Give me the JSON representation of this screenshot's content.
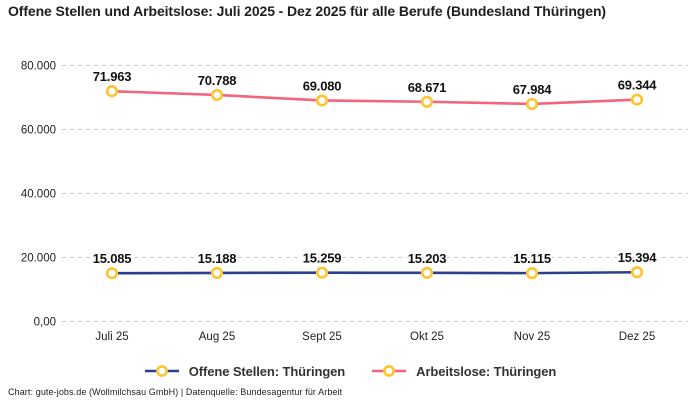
{
  "title": "Offene Stellen und Arbeitslose: Juli 2025 - Dez 2025 für alle Berufe (Bundesland Thüringen)",
  "footer": "Chart: gute-jobs.de (Wollmilchsau GmbH) | Datenquelle: Bundesagentur für Arbeit",
  "colors": {
    "open_positions_line": "#2B3E8F",
    "unemployed_line": "#F4647C",
    "marker_ring": "#FFC331",
    "marker_fill": "#FFFFFF",
    "gridline": "#CCCCCC",
    "data_label_text": "#111111",
    "axis_tick_text": "#222222",
    "legend_text": "#333333",
    "title_text": "#1F1F1F",
    "background": "#FFFFFF"
  },
  "chart_data": {
    "type": "line",
    "title": "Offene Stellen und Arbeitslose: Juli 2025 - Dez 2025 für alle Berufe (Bundesland Thüringen)",
    "categories": [
      "Juli 25",
      "Aug 25",
      "Sept 25",
      "Okt 25",
      "Nov 25",
      "Dez 25"
    ],
    "series": [
      {
        "name": "Offene Stellen: Thüringen",
        "values": [
          15085,
          15188,
          15259,
          15203,
          15115,
          15394
        ],
        "labels": [
          "15.085",
          "15.188",
          "15.259",
          "15.203",
          "15.115",
          "15.394"
        ],
        "line_color": "#2B3E8F",
        "marker_ring_color": "#FFC331",
        "marker_fill_color": "#FFFFFF"
      },
      {
        "name": "Arbeitslose: Thüringen",
        "values": [
          71963,
          70788,
          69080,
          68671,
          67984,
          69344
        ],
        "labels": [
          "71.963",
          "70.788",
          "69.080",
          "68.671",
          "67.984",
          "69.344"
        ],
        "line_color": "#F4647C",
        "marker_ring_color": "#FFC331",
        "marker_fill_color": "#FFFFFF"
      }
    ],
    "xlabel": "",
    "ylabel": "",
    "ylim": [
      0,
      85000
    ],
    "yticks": [
      0,
      20000,
      40000,
      60000,
      80000
    ],
    "ytick_labels": [
      "0,00",
      "20.000",
      "40.000",
      "60.000",
      "80.000"
    ],
    "grid": "horizontal-dashed",
    "legend_position": "bottom"
  },
  "legend": {
    "items": [
      {
        "label": "Offene Stellen: Thüringen"
      },
      {
        "label": "Arbeitslose: Thüringen"
      }
    ]
  }
}
